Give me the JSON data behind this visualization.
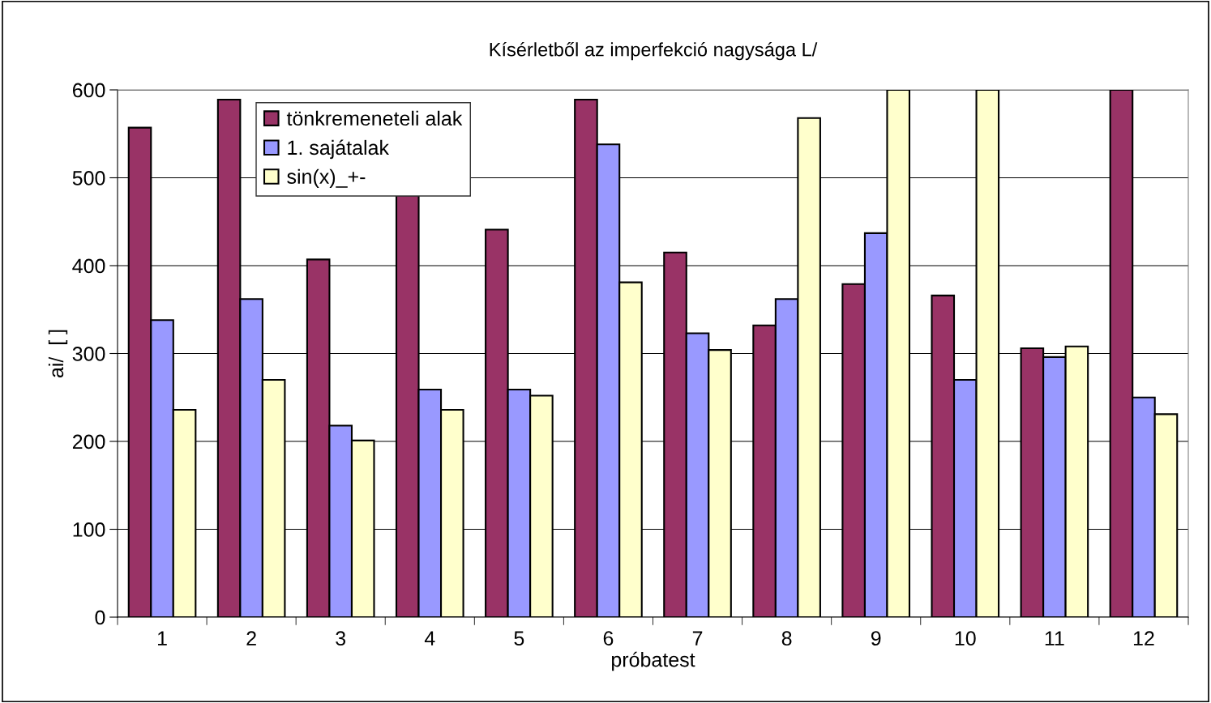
{
  "chart_data": {
    "type": "bar",
    "title": "Kísérletből az imperfekció nagysága L/",
    "xlabel": "próbatest",
    "ylabel": "ai/  [ ]",
    "categories": [
      "1",
      "2",
      "3",
      "4",
      "5",
      "6",
      "7",
      "8",
      "9",
      "10",
      "11",
      "12"
    ],
    "series": [
      {
        "name": "tönkremeneteli alak",
        "color": "#993366",
        "values": [
          557,
          589,
          407,
          480,
          441,
          589,
          415,
          332,
          379,
          366,
          306,
          600
        ]
      },
      {
        "name": "1. sajátalak",
        "color": "#9999ff",
        "values": [
          338,
          362,
          218,
          259,
          259,
          538,
          323,
          362,
          437,
          270,
          296,
          250
        ]
      },
      {
        "name": "sin(x)_+-",
        "color": "#ffffcc",
        "values": [
          236,
          270,
          201,
          236,
          252,
          381,
          304,
          568,
          600,
          600,
          308,
          231
        ]
      }
    ],
    "ylim": [
      0,
      600
    ],
    "yticks": [
      0,
      100,
      200,
      300,
      400,
      500,
      600
    ],
    "grid": "y",
    "legend": "top left"
  }
}
